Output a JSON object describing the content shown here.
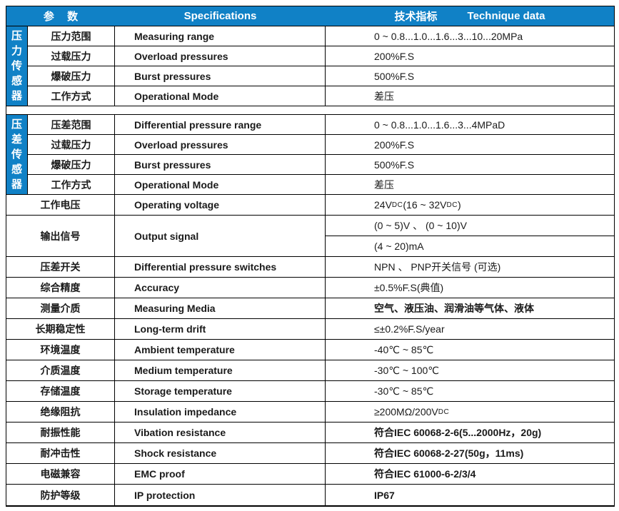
{
  "colors": {
    "header_blue": "#1081c6",
    "label_blue": "#1081c6",
    "border": "#000000",
    "text": "#1a1a1a"
  },
  "header": {
    "param": "参 数",
    "spec": "Specifications",
    "tech_cn": "技术指标",
    "tech_en": "Technique data"
  },
  "sections": [
    {
      "label": "压力传感器",
      "rows": [
        {
          "cn": "压力范围",
          "en": "Measuring range",
          "val": "0 ~ 0.8...1.0...1.6...3...10...20MPa"
        },
        {
          "cn": "过载压力",
          "en": "Overload pressures",
          "val": "200%F.S"
        },
        {
          "cn": "爆破压力",
          "en": "Burst pressures",
          "val": "500%F.S"
        },
        {
          "cn": "工作方式",
          "en": "Operational Mode",
          "val": "差压"
        }
      ]
    },
    {
      "label": "压差传感器",
      "rows": [
        {
          "cn": "压差范围",
          "en": "Differential pressure range",
          "val": "0 ~ 0.8...1.0...1.6...3...4MPaD"
        },
        {
          "cn": "过载压力",
          "en": "Overload pressures",
          "val": "200%F.S"
        },
        {
          "cn": "爆破压力",
          "en": "Burst pressures",
          "val": "500%F.S"
        },
        {
          "cn": "工作方式",
          "en": "Operational Mode",
          "val": "差压"
        }
      ]
    }
  ],
  "rows": {
    "voltage": {
      "cn": "工作电压",
      "en": "Operating voltage",
      "val": "24VDC (16 ~ 32VDC)"
    },
    "output": {
      "cn": "输出信号",
      "en": "Output signal",
      "val1": "(0 ~ 5)V 、 (0 ~ 10)V",
      "val2": "(4 ~ 20)mA"
    },
    "switch": {
      "cn": "压差开关",
      "en": "Differential pressure switches",
      "val": "NPN 、 PNP开关信号 (可选)"
    },
    "accuracy": {
      "cn": "综合精度",
      "en": "Accuracy",
      "val": "±0.5%F.S(典值)"
    },
    "media": {
      "cn": "测量介质",
      "en": "Measuring Media",
      "val": "空气、液压油、润滑油等气体、液体"
    },
    "drift": {
      "cn": "长期稳定性",
      "en": "Long-term drift",
      "val": "≤±0.2%F.S/year"
    },
    "ambient": {
      "cn": "环境温度",
      "en": "Ambient temperature",
      "val": "-40℃ ~ 85℃"
    },
    "medium": {
      "cn": "介质温度",
      "en": "Medium temperature",
      "val": "-30℃ ~ 100℃"
    },
    "storage": {
      "cn": "存储温度",
      "en": "Storage temperature",
      "val": "-30℃ ~ 85℃"
    },
    "insulation": {
      "cn": "绝缘阻抗",
      "en": "Insulation impedance",
      "val": "≥200MΩ/200VDC"
    },
    "vibration": {
      "cn": "耐振性能",
      "en": "Vibation resistance",
      "val": "符合IEC 60068-2-6(5...2000Hz，20g)"
    },
    "shock": {
      "cn": "耐冲击性",
      "en": "Shock  resistance",
      "val": "符合IEC 60068-2-27(50g，11ms)"
    },
    "emc": {
      "cn": "电磁兼容",
      "en": "EMC proof",
      "val": "符合IEC 61000-6-2/3/4"
    },
    "ip": {
      "cn": "防护等级",
      "en": "IP protection",
      "val": "IP67"
    }
  }
}
